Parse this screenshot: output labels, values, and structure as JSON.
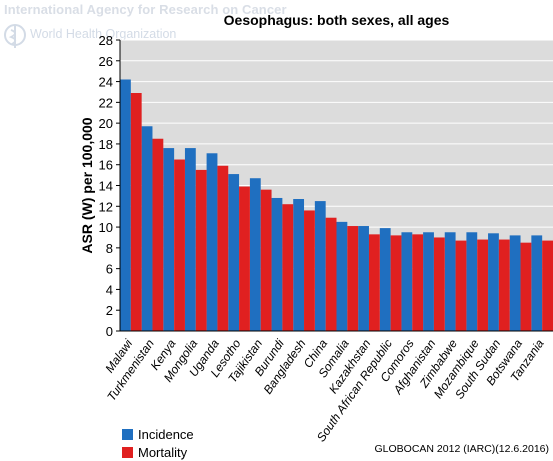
{
  "header": {
    "watermark_agency": "International Agency for Research on Cancer",
    "watermark_who": "World Health Organization"
  },
  "source": "GLOBOCAN 2012 (IARC)(12.6.2016)",
  "colors": {
    "incidence": "#1f6fc0",
    "mortality": "#e02020",
    "plot_bg": "#dcdcdc",
    "grid": "#ffffff"
  },
  "chart_data": {
    "type": "bar",
    "title": "Oesophagus: both sexes, all ages",
    "ylabel": "ASR (W) per 100,000",
    "xlabel": "",
    "ylim": [
      0,
      28
    ],
    "yticks": [
      0,
      2,
      4,
      6,
      8,
      10,
      12,
      14,
      16,
      18,
      20,
      22,
      24,
      26,
      28
    ],
    "grid": true,
    "legend": "bottom-left",
    "categories": [
      "Malawi",
      "Turkmenistan",
      "Kenya",
      "Mongolia",
      "Uganda",
      "Lesotho",
      "Tajikistan",
      "Burundi",
      "Bangladesh",
      "China",
      "Somalia",
      "Kazakhstan",
      "South African Republic",
      "Comoros",
      "Afghanistan",
      "Zimbabwe",
      "Mozambique",
      "South Sudan",
      "Botswana",
      "Tanzania"
    ],
    "series": [
      {
        "name": "Incidence",
        "values": [
          24.2,
          19.7,
          17.6,
          17.6,
          17.1,
          15.1,
          14.7,
          12.8,
          12.7,
          12.5,
          10.5,
          10.1,
          9.9,
          9.5,
          9.5,
          9.5,
          9.5,
          9.4,
          9.2,
          9.2
        ]
      },
      {
        "name": "Mortality",
        "values": [
          22.9,
          18.5,
          16.5,
          15.5,
          15.9,
          13.9,
          13.6,
          12.2,
          11.6,
          10.9,
          10.1,
          9.3,
          9.2,
          9.3,
          9.0,
          8.7,
          8.8,
          8.8,
          8.5,
          8.7
        ]
      }
    ]
  }
}
